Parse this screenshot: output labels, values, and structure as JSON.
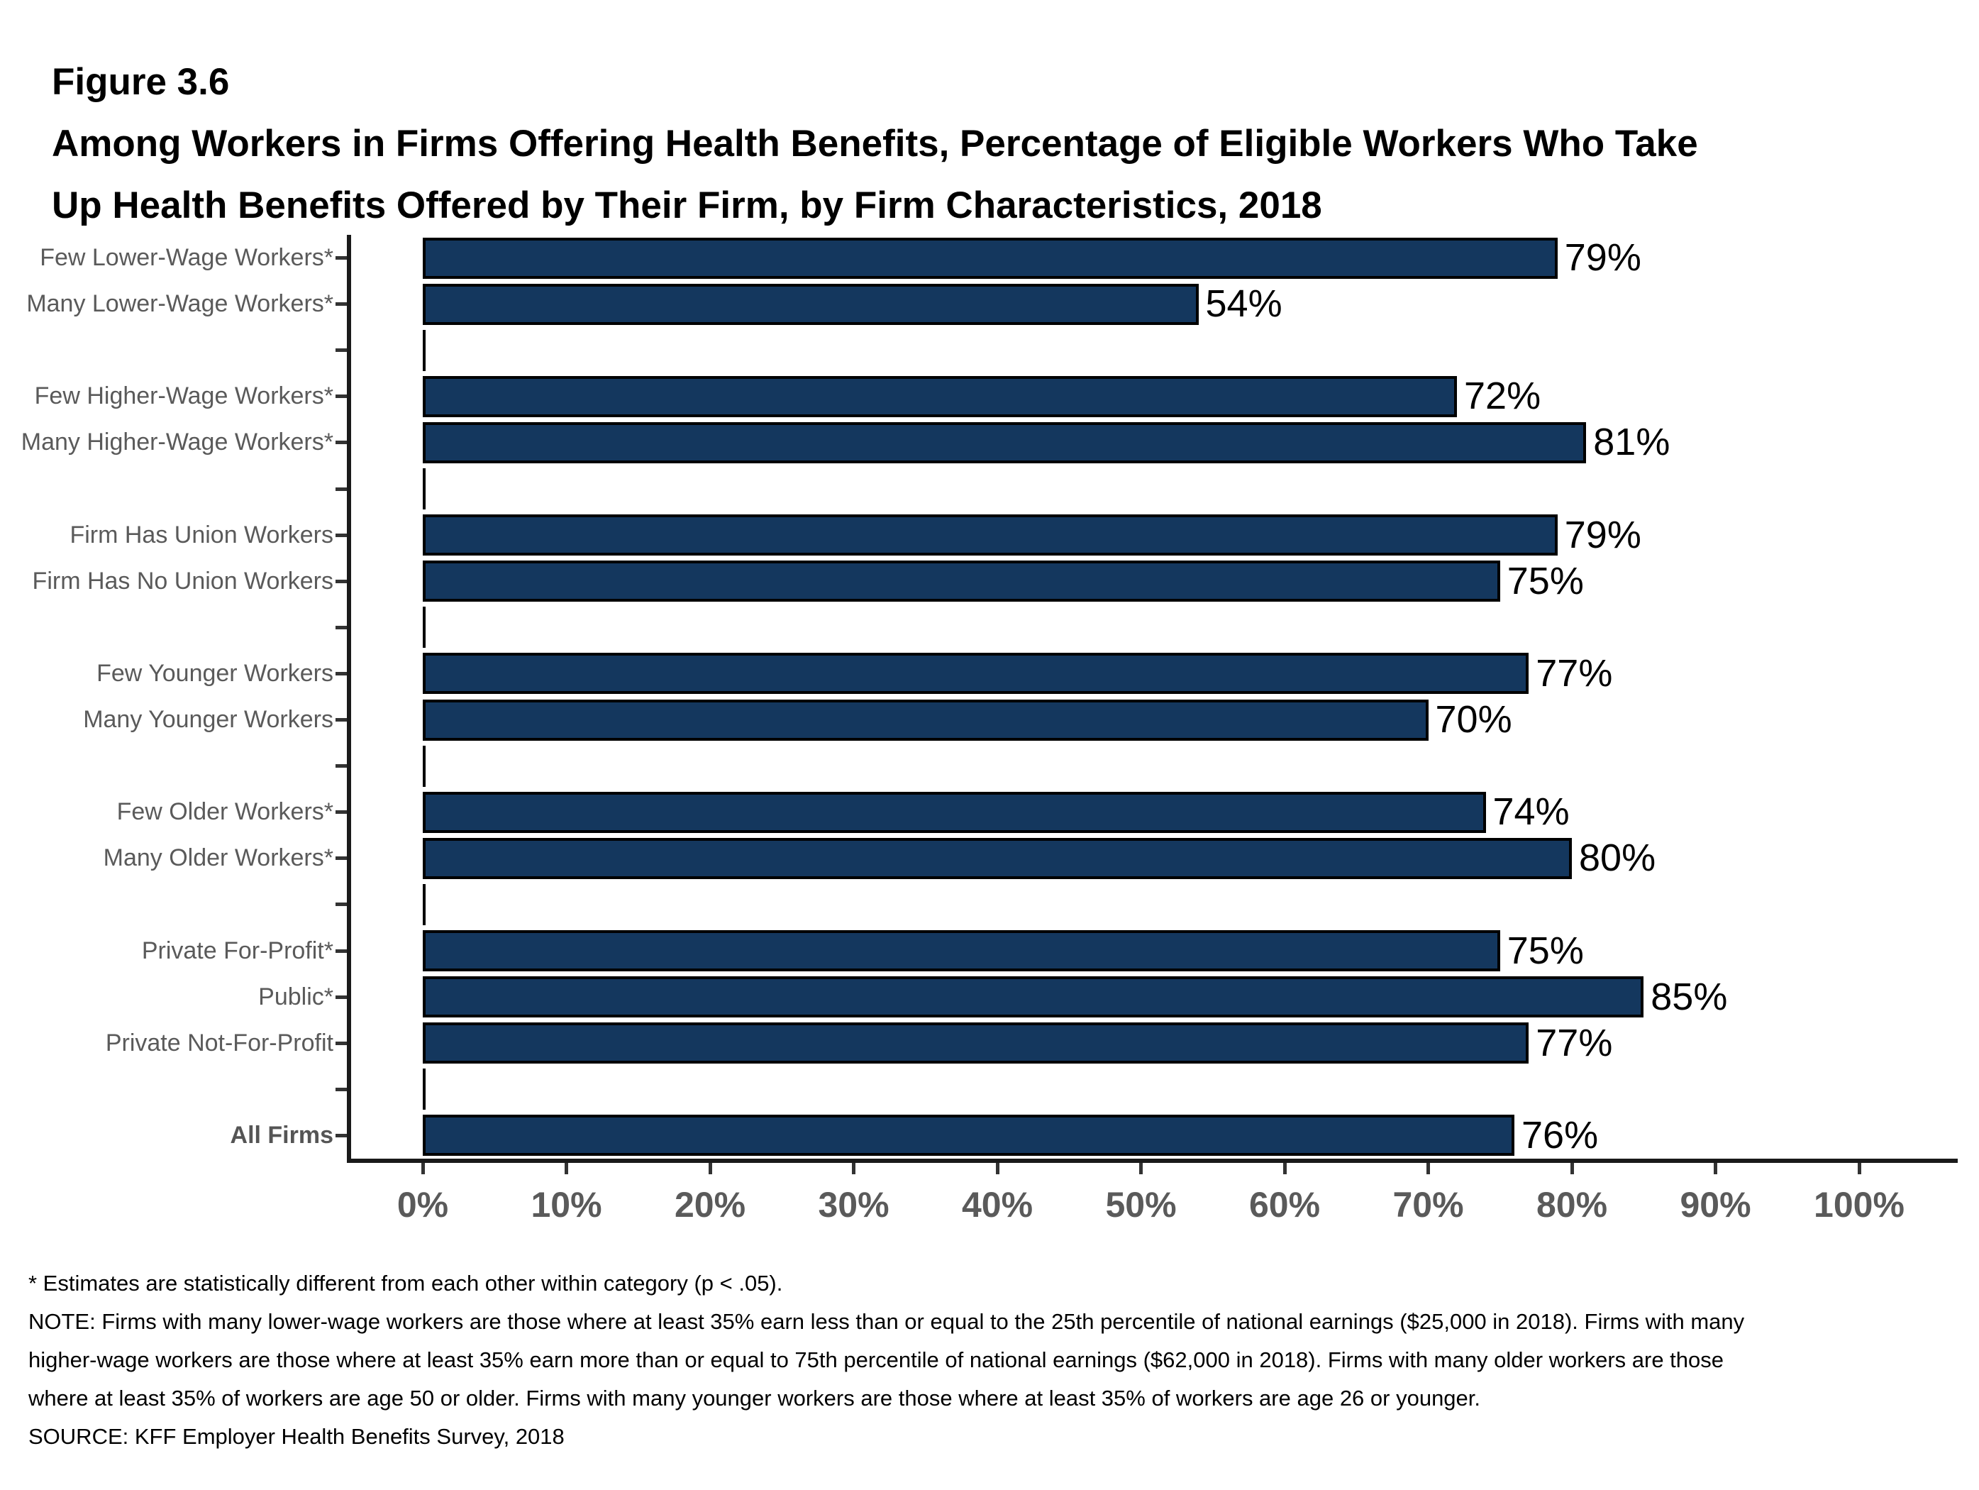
{
  "header": {
    "figure_label": "Figure 3.6",
    "title_line1": "Among Workers in Firms Offering Health Benefits, Percentage of Eligible Workers Who Take",
    "title_line2": "Up Health Benefits Offered by Their Firm, by Firm Characteristics, 2018"
  },
  "chart_data": {
    "type": "bar",
    "orientation": "horizontal",
    "value_unit": "%",
    "xlim": [
      0,
      100
    ],
    "x_tick_labels": [
      "0%",
      "10%",
      "20%",
      "30%",
      "40%",
      "50%",
      "60%",
      "70%",
      "80%",
      "90%",
      "100%"
    ],
    "grid": false,
    "legend": null,
    "rows": [
      {
        "label": "Few Lower-Wage Workers*",
        "value": 79,
        "display": "79%"
      },
      {
        "label": "Many Lower-Wage Workers*",
        "value": 54,
        "display": "54%"
      },
      {
        "spacer": true
      },
      {
        "label": "Few Higher-Wage Workers*",
        "value": 72,
        "display": "72%"
      },
      {
        "label": "Many Higher-Wage Workers*",
        "value": 81,
        "display": "81%"
      },
      {
        "spacer": true
      },
      {
        "label": "Firm Has Union Workers",
        "value": 79,
        "display": "79%"
      },
      {
        "label": "Firm Has No Union Workers",
        "value": 75,
        "display": "75%"
      },
      {
        "spacer": true
      },
      {
        "label": "Few Younger Workers",
        "value": 77,
        "display": "77%"
      },
      {
        "label": "Many Younger Workers",
        "value": 70,
        "display": "70%"
      },
      {
        "spacer": true
      },
      {
        "label": "Few Older Workers*",
        "value": 74,
        "display": "74%"
      },
      {
        "label": "Many Older Workers*",
        "value": 80,
        "display": "80%"
      },
      {
        "spacer": true
      },
      {
        "label": "Private For-Profit*",
        "value": 75,
        "display": "75%"
      },
      {
        "label": "Public*",
        "value": 85,
        "display": "85%"
      },
      {
        "label": "Private Not-For-Profit",
        "value": 77,
        "display": "77%"
      },
      {
        "spacer": true
      },
      {
        "label": "All Firms",
        "value": 76,
        "display": "76%",
        "bold": true
      }
    ]
  },
  "footnotes": {
    "asterisk": "* Estimates are statistically different from each other within category (p < .05).",
    "note": "NOTE: Firms with many lower-wage workers are those where at least 35% earn less than or equal to the 25th percentile of national earnings ($25,000 in 2018). Firms with many higher-wage workers are those where at least 35% earn more than or equal to 75th percentile of national earnings ($62,000 in 2018). Firms with many older workers are those where at least 35% of workers are age 50 or older. Firms with many younger workers are those where at least 35% of workers are age 26 or younger.",
    "source": "SOURCE: KFF Employer Health Benefits Survey, 2018"
  },
  "colors": {
    "bar_fill": "#14375E",
    "bar_border": "#000000",
    "axis": "#1A1A1A",
    "category_label": "#5A5A5A",
    "tick_label": "#5A5A5A",
    "value_label": "#000000"
  }
}
